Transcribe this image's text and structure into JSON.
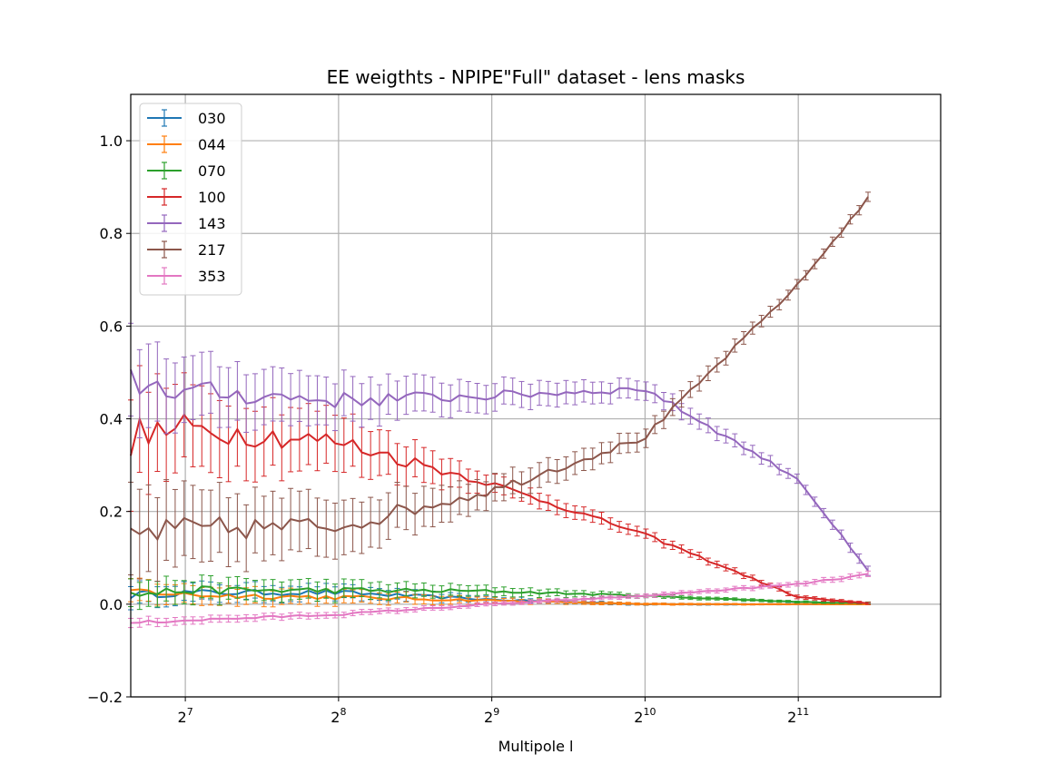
{
  "chart_data": {
    "type": "line",
    "title": "EE weigthts - NPIPE\"Full\" dataset - lens masks",
    "xlabel": "Multipole l",
    "ylabel": "",
    "x_scale": "log2",
    "xlim": [
      100,
      3900
    ],
    "ylim": [
      -0.2,
      1.1
    ],
    "x_ticks": [
      {
        "value": 128,
        "base": "2",
        "exp": "7"
      },
      {
        "value": 256,
        "base": "2",
        "exp": "8"
      },
      {
        "value": 512,
        "base": "2",
        "exp": "9"
      },
      {
        "value": 1024,
        "base": "2",
        "exp": "10"
      },
      {
        "value": 2048,
        "base": "2",
        "exp": "11"
      }
    ],
    "y_ticks": [
      {
        "value": -0.2,
        "label": "−0.2"
      },
      {
        "value": 0.0,
        "label": "0.0"
      },
      {
        "value": 0.2,
        "label": "0.2"
      },
      {
        "value": 0.4,
        "label": "0.4"
      },
      {
        "value": 0.6,
        "label": "0.6"
      },
      {
        "value": 0.8,
        "label": "0.8"
      },
      {
        "value": 1.0,
        "label": "1.0"
      }
    ],
    "grid": true,
    "legend_position": "top-left",
    "error_bars": true,
    "x_knots": [
      100,
      128,
      256,
      512,
      1024,
      2048,
      2900
    ],
    "series": [
      {
        "name": "030",
        "color": "#1f77b4",
        "knots": [
          0.02,
          0.025,
          0.025,
          0.01,
          0.0,
          0.0,
          0.0
        ],
        "errors": [
          0.025,
          0.02,
          0.015,
          0.006,
          0.002,
          0.001,
          0.001
        ]
      },
      {
        "name": "044",
        "color": "#ff7f0e",
        "knots": [
          0.03,
          0.02,
          0.015,
          0.008,
          0.0,
          0.0,
          0.0
        ],
        "errors": [
          0.025,
          0.02,
          0.015,
          0.006,
          0.002,
          0.001,
          0.001
        ]
      },
      {
        "name": "070",
        "color": "#2ca02c",
        "knots": [
          0.02,
          0.03,
          0.03,
          0.028,
          0.018,
          0.005,
          0.002
        ],
        "errors": [
          0.03,
          0.025,
          0.02,
          0.01,
          0.004,
          0.002,
          0.002
        ]
      },
      {
        "name": "100",
        "color": "#d62728",
        "knots": [
          0.36,
          0.38,
          0.35,
          0.26,
          0.15,
          0.015,
          0.0
        ],
        "errors": [
          0.12,
          0.09,
          0.06,
          0.02,
          0.01,
          0.004,
          0.002
        ]
      },
      {
        "name": "143",
        "color": "#9467bd",
        "knots": [
          0.48,
          0.46,
          0.44,
          0.45,
          0.465,
          0.27,
          0.05
        ],
        "errors": [
          0.1,
          0.07,
          0.05,
          0.03,
          0.02,
          0.01,
          0.01
        ]
      },
      {
        "name": "217",
        "color": "#8c564b",
        "knots": [
          0.15,
          0.16,
          0.17,
          0.245,
          0.36,
          0.69,
          0.895
        ],
        "errors": [
          0.1,
          0.08,
          0.06,
          0.03,
          0.02,
          0.01,
          0.01
        ]
      },
      {
        "name": "353",
        "color": "#e377c2",
        "knots": [
          -0.04,
          -0.035,
          -0.022,
          0.0,
          0.018,
          0.043,
          0.066
        ],
        "errors": [
          0.01,
          0.008,
          0.006,
          0.004,
          0.004,
          0.005,
          0.006
        ]
      }
    ]
  }
}
